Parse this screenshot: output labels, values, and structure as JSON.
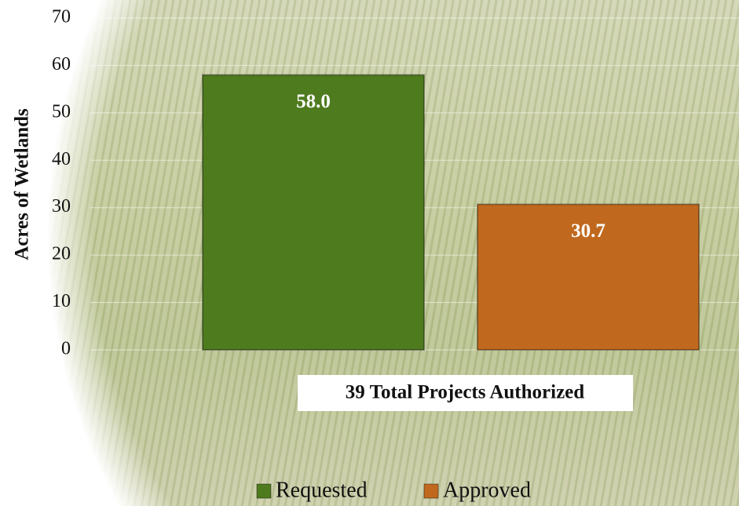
{
  "chart_data": {
    "type": "bar",
    "y_label": "Acres of Wetlands",
    "annotation": "39 Total Projects Authorized",
    "categories": [
      null
    ],
    "series": [
      {
        "name": "Requested",
        "color": "#4f7b1f",
        "values": [
          58
        ],
        "value_labels": [
          "58.0"
        ]
      },
      {
        "name": "Approved",
        "color": "#c0691e",
        "values": [
          30.7
        ],
        "value_labels": [
          "30.7"
        ]
      }
    ],
    "ylim": [
      0,
      70
    ],
    "yticks": [
      0,
      10,
      20,
      30,
      40,
      50,
      60,
      70
    ],
    "grid": true,
    "legend": "bottom"
  }
}
